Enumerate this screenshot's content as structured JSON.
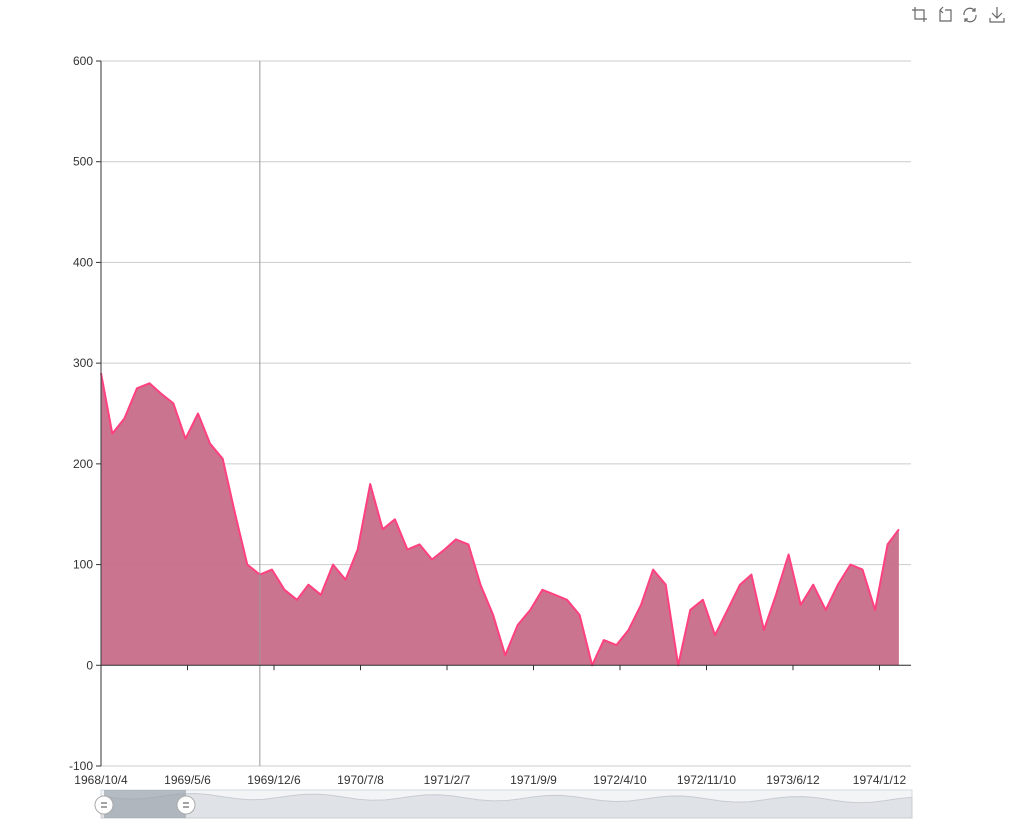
{
  "toolbox": {
    "icons": [
      "zoom-icon",
      "zoom-reset-icon",
      "restore-icon",
      "save-image-icon"
    ]
  },
  "colors": {
    "line": "#ff4081",
    "area": "#c86d8a",
    "axis": "#333333",
    "grid": "#cccccc",
    "slider_fill": "#a7b7cc",
    "slider_bg": "#e8ecf0"
  },
  "chart_data": {
    "type": "area",
    "title": "",
    "xlabel": "",
    "ylabel": "",
    "ylim": [
      -100,
      600
    ],
    "y_ticks": [
      "600",
      "500",
      "400",
      "300",
      "200",
      "100",
      "0",
      "-100"
    ],
    "x_ticks": [
      "1968/10/4",
      "1969/5/6",
      "1969/12/6",
      "1970/7/8",
      "1971/2/7",
      "1971/9/9",
      "1972/4/10",
      "1972/11/10",
      "1973/6/12",
      "1974/1/12"
    ],
    "grid": true,
    "crosshair_x": "1969/11/1",
    "series": [
      {
        "x": [
          "1968/10/4",
          "1968/11/1",
          "1968/12/1",
          "1969/1/1",
          "1969/2/1",
          "1969/3/1",
          "1969/4/1",
          "1969/5/1",
          "1969/6/1",
          "1969/7/1",
          "1969/8/1",
          "1969/9/1",
          "1969/10/1",
          "1969/11/1",
          "1969/12/1",
          "1970/1/1",
          "1970/2/1",
          "1970/3/1",
          "1970/4/1",
          "1970/5/1",
          "1970/6/1",
          "1970/7/1",
          "1970/8/1",
          "1970/9/1",
          "1970/10/1",
          "1970/11/1",
          "1970/12/1",
          "1971/1/1",
          "1971/2/1",
          "1971/3/1",
          "1971/4/1",
          "1971/5/1",
          "1971/6/1",
          "1971/7/1",
          "1971/8/1",
          "1971/9/1",
          "1971/10/1",
          "1971/11/1",
          "1971/12/1",
          "1972/1/1",
          "1972/2/1",
          "1972/3/1",
          "1972/4/1",
          "1972/5/1",
          "1972/6/1",
          "1972/7/1",
          "1972/8/1",
          "1972/9/1",
          "1972/10/1",
          "1972/11/1",
          "1972/12/1",
          "1973/1/1",
          "1973/2/1",
          "1973/3/1",
          "1973/4/1",
          "1973/5/1",
          "1973/6/1",
          "1973/7/1",
          "1973/8/1",
          "1973/9/1",
          "1973/10/1",
          "1973/11/1",
          "1973/12/1",
          "1974/1/1",
          "1974/2/1",
          "1974/3/1"
        ],
        "values": [
          290,
          230,
          245,
          275,
          280,
          270,
          260,
          225,
          250,
          220,
          205,
          150,
          100,
          90,
          95,
          75,
          65,
          80,
          70,
          100,
          85,
          115,
          180,
          135,
          145,
          115,
          120,
          105,
          115,
          125,
          120,
          80,
          50,
          10,
          40,
          55,
          75,
          70,
          65,
          50,
          0,
          25,
          20,
          35,
          60,
          95,
          80,
          0,
          55,
          65,
          30,
          55,
          80,
          90,
          35,
          70,
          110,
          60,
          80,
          55,
          80,
          100,
          95,
          55,
          120,
          135
        ]
      }
    ]
  }
}
